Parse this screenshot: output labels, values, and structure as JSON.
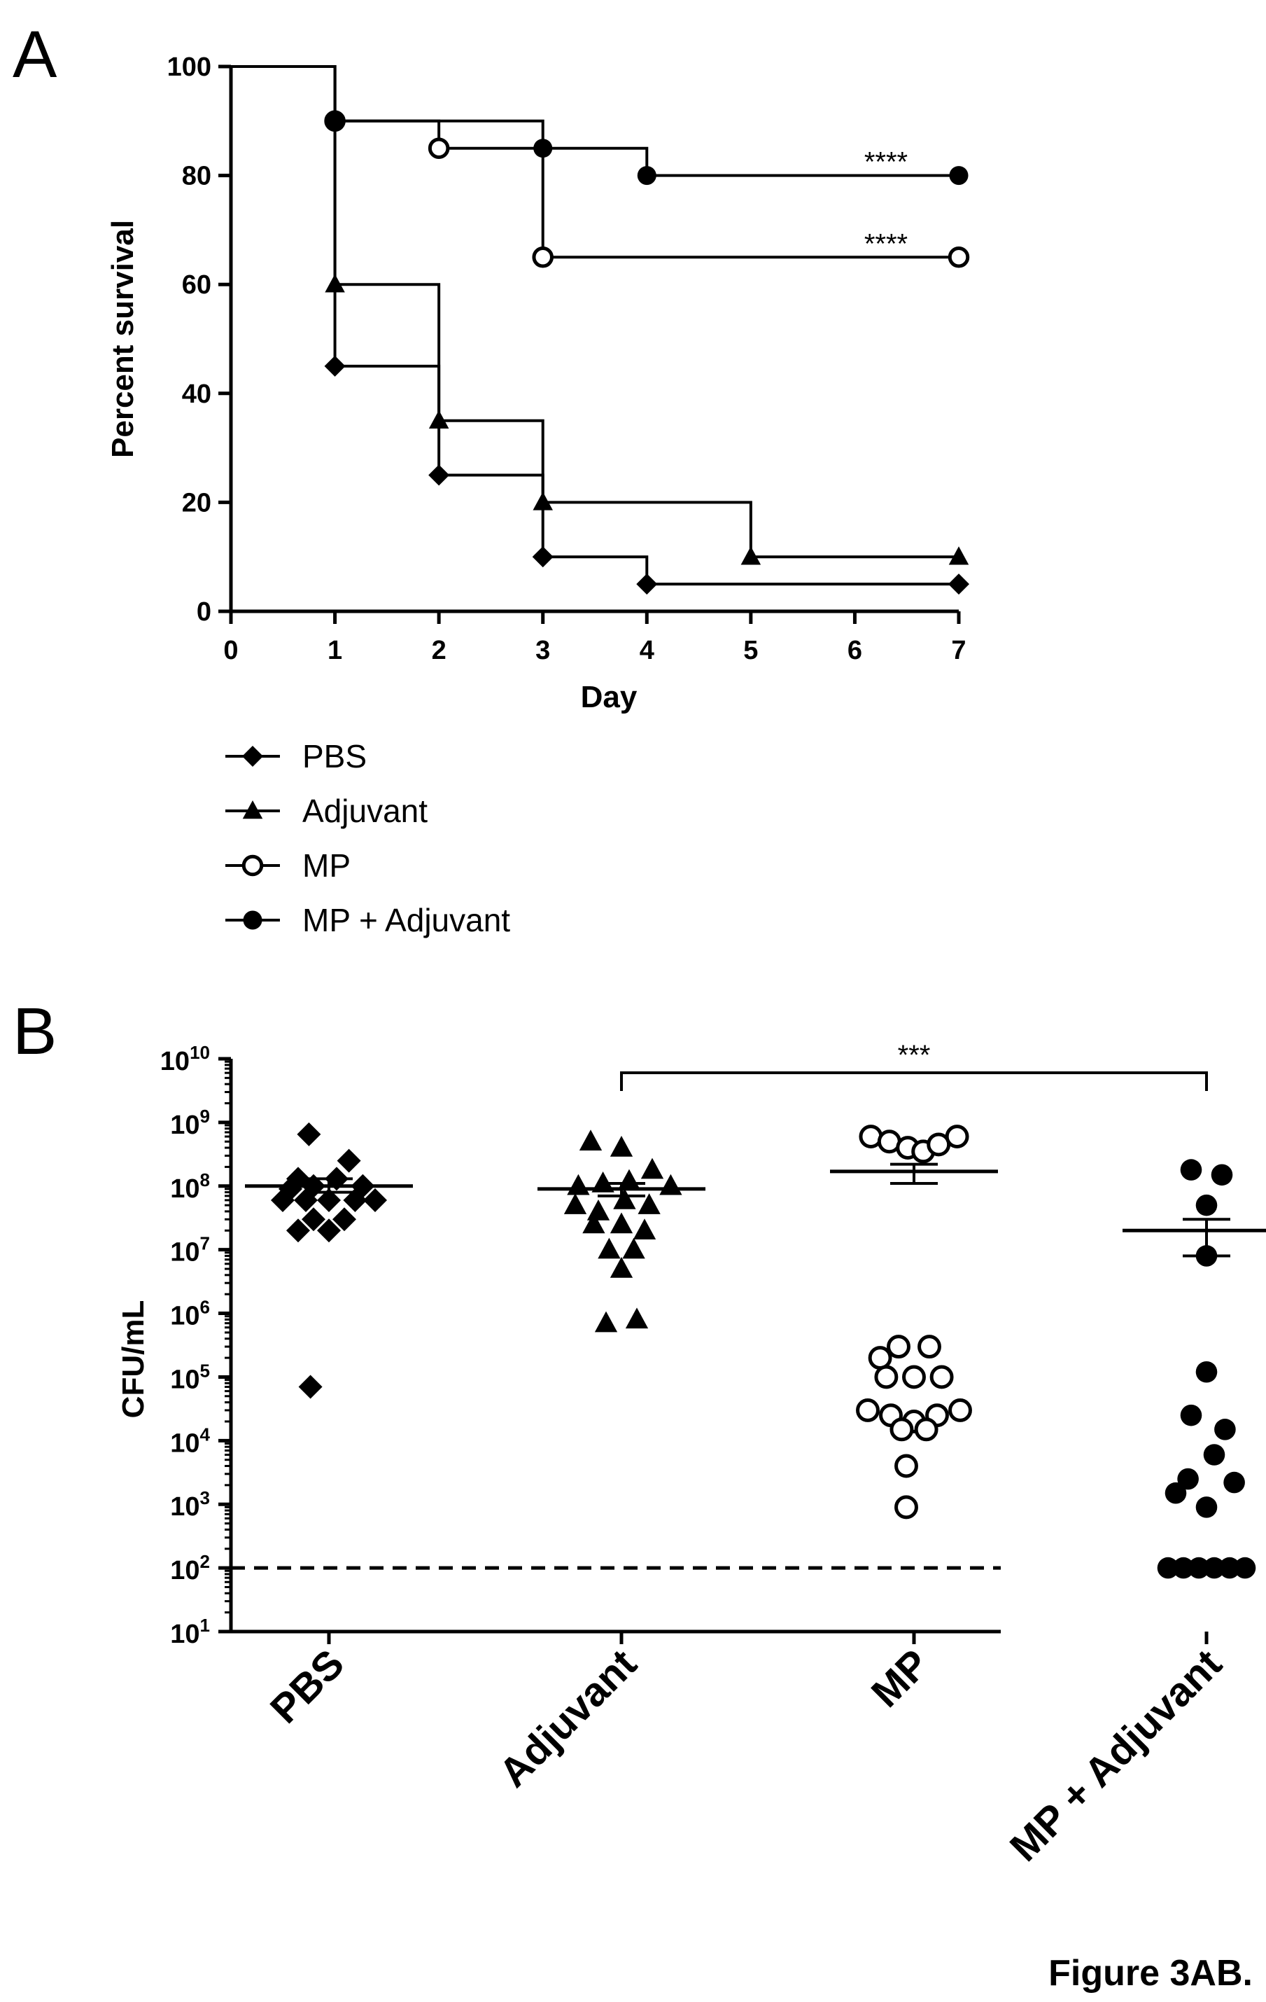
{
  "figure_caption": "Figure 3AB.",
  "chart_data": [
    {
      "panel": "A",
      "type": "line",
      "xlabel": "Day",
      "ylabel": "Percent survival",
      "xlim": [
        0,
        7
      ],
      "ylim": [
        0,
        100
      ],
      "xticks": [
        0,
        1,
        2,
        3,
        4,
        5,
        6,
        7
      ],
      "yticks": [
        0,
        20,
        40,
        60,
        80,
        100
      ],
      "step": true,
      "legend_position": "bottom-left below plot",
      "series": [
        {
          "name": "PBS",
          "marker": "diamond",
          "x": [
            0,
            1,
            2,
            3,
            4,
            7
          ],
          "y": [
            100,
            45,
            25,
            10,
            5,
            5
          ]
        },
        {
          "name": "Adjuvant",
          "marker": "triangle",
          "x": [
            0,
            1,
            2,
            3,
            5,
            7
          ],
          "y": [
            100,
            60,
            35,
            20,
            10,
            10
          ]
        },
        {
          "name": "MP",
          "marker": "open-circle",
          "x": [
            0,
            1,
            2,
            3,
            7
          ],
          "y": [
            100,
            90,
            85,
            65,
            65
          ]
        },
        {
          "name": "MP + Adjuvant",
          "marker": "filled-circle",
          "x": [
            0,
            1,
            3,
            4,
            7
          ],
          "y": [
            100,
            90,
            85,
            80,
            80
          ]
        }
      ],
      "annotations": [
        {
          "text": "****",
          "series": "MP + Adjuvant"
        },
        {
          "text": "****",
          "series": "MP"
        }
      ]
    },
    {
      "panel": "B",
      "type": "scatter",
      "ylabel": "CFU/mL",
      "yscale": "log",
      "ylim": [
        10,
        10000000000
      ],
      "ytick_labels": [
        {
          "base": "10",
          "exp": "1"
        },
        {
          "base": "10",
          "exp": "2"
        },
        {
          "base": "10",
          "exp": "3"
        },
        {
          "base": "10",
          "exp": "4"
        },
        {
          "base": "10",
          "exp": "5"
        },
        {
          "base": "10",
          "exp": "6"
        },
        {
          "base": "10",
          "exp": "7"
        },
        {
          "base": "10",
          "exp": "8"
        },
        {
          "base": "10",
          "exp": "9"
        },
        {
          "base": "10",
          "exp": "10"
        }
      ],
      "categories": [
        "PBS",
        "Adjuvant",
        "MP",
        "MP + Adjuvant"
      ],
      "detection_limit": 100,
      "significance": {
        "text": "***",
        "from": "Adjuvant",
        "to": "MP + Adjuvant"
      },
      "groups": [
        {
          "name": "PBS",
          "marker": "diamond",
          "mean": 100000000,
          "sem": [
            80000000,
            130000000
          ],
          "points": [
            {
              "dx": -0.13,
              "v": 650000000
            },
            {
              "dx": 0.13,
              "v": 250000000
            },
            {
              "dx": -0.2,
              "v": 130000000
            },
            {
              "dx": 0.05,
              "v": 130000000
            },
            {
              "dx": -0.25,
              "v": 90000000
            },
            {
              "dx": -0.1,
              "v": 100000000
            },
            {
              "dx": 0.22,
              "v": 100000000
            },
            {
              "dx": -0.3,
              "v": 60000000
            },
            {
              "dx": -0.15,
              "v": 60000000
            },
            {
              "dx": 0.0,
              "v": 60000000
            },
            {
              "dx": 0.17,
              "v": 60000000
            },
            {
              "dx": 0.3,
              "v": 60000000
            },
            {
              "dx": -0.1,
              "v": 30000000
            },
            {
              "dx": 0.1,
              "v": 30000000
            },
            {
              "dx": -0.2,
              "v": 20000000
            },
            {
              "dx": 0.0,
              "v": 20000000
            },
            {
              "dx": -0.12,
              "v": 70000
            }
          ]
        },
        {
          "name": "Adjuvant",
          "marker": "triangle",
          "mean": 90000000,
          "sem": [
            70000000,
            110000000
          ],
          "points": [
            {
              "dx": -0.2,
              "v": 500000000
            },
            {
              "dx": 0.0,
              "v": 400000000
            },
            {
              "dx": -0.28,
              "v": 100000000
            },
            {
              "dx": -0.12,
              "v": 110000000
            },
            {
              "dx": 0.05,
              "v": 120000000
            },
            {
              "dx": 0.2,
              "v": 180000000
            },
            {
              "dx": 0.32,
              "v": 100000000
            },
            {
              "dx": -0.3,
              "v": 50000000
            },
            {
              "dx": -0.15,
              "v": 40000000
            },
            {
              "dx": 0.02,
              "v": 60000000
            },
            {
              "dx": 0.18,
              "v": 50000000
            },
            {
              "dx": -0.18,
              "v": 25000000
            },
            {
              "dx": 0.0,
              "v": 25000000
            },
            {
              "dx": 0.15,
              "v": 20000000
            },
            {
              "dx": -0.08,
              "v": 10000000
            },
            {
              "dx": 0.08,
              "v": 10000000
            },
            {
              "dx": 0.0,
              "v": 5000000
            },
            {
              "dx": -0.1,
              "v": 700000
            },
            {
              "dx": 0.1,
              "v": 800000
            }
          ]
        },
        {
          "name": "MP",
          "marker": "open-circle",
          "mean": 170000000,
          "sem": [
            110000000,
            220000000
          ],
          "points": [
            {
              "dx": -0.28,
              "v": 600000000
            },
            {
              "dx": -0.16,
              "v": 500000000
            },
            {
              "dx": -0.04,
              "v": 400000000
            },
            {
              "dx": 0.06,
              "v": 350000000
            },
            {
              "dx": 0.16,
              "v": 450000000
            },
            {
              "dx": 0.28,
              "v": 600000000
            },
            {
              "dx": -0.22,
              "v": 200000
            },
            {
              "dx": -0.1,
              "v": 300000
            },
            {
              "dx": 0.1,
              "v": 300000
            },
            {
              "dx": -0.18,
              "v": 100000
            },
            {
              "dx": 0.0,
              "v": 100000
            },
            {
              "dx": 0.18,
              "v": 100000
            },
            {
              "dx": -0.3,
              "v": 30000
            },
            {
              "dx": -0.15,
              "v": 25000
            },
            {
              "dx": 0.0,
              "v": 20000
            },
            {
              "dx": 0.15,
              "v": 25000
            },
            {
              "dx": 0.3,
              "v": 30000
            },
            {
              "dx": -0.08,
              "v": 15000
            },
            {
              "dx": 0.08,
              "v": 15000
            },
            {
              "dx": -0.05,
              "v": 4000
            },
            {
              "dx": -0.05,
              "v": 900
            }
          ]
        },
        {
          "name": "MP + Adjuvant",
          "marker": "filled-circle",
          "mean": 20000000,
          "sem": [
            8000000,
            30000000
          ],
          "points": [
            {
              "dx": -0.1,
              "v": 180000000
            },
            {
              "dx": 0.1,
              "v": 150000000
            },
            {
              "dx": 0.0,
              "v": 50000000
            },
            {
              "dx": 0.0,
              "v": 8000000
            },
            {
              "dx": 0.0,
              "v": 120000
            },
            {
              "dx": -0.1,
              "v": 25000
            },
            {
              "dx": 0.12,
              "v": 15000
            },
            {
              "dx": -0.12,
              "v": 2500
            },
            {
              "dx": 0.05,
              "v": 6000
            },
            {
              "dx": 0.18,
              "v": 2200
            },
            {
              "dx": -0.2,
              "v": 1500
            },
            {
              "dx": 0.0,
              "v": 900
            },
            {
              "dx": -0.25,
              "v": 100
            },
            {
              "dx": -0.15,
              "v": 100
            },
            {
              "dx": -0.05,
              "v": 100
            },
            {
              "dx": 0.05,
              "v": 100
            },
            {
              "dx": 0.15,
              "v": 100
            },
            {
              "dx": 0.25,
              "v": 100
            }
          ]
        }
      ]
    }
  ]
}
